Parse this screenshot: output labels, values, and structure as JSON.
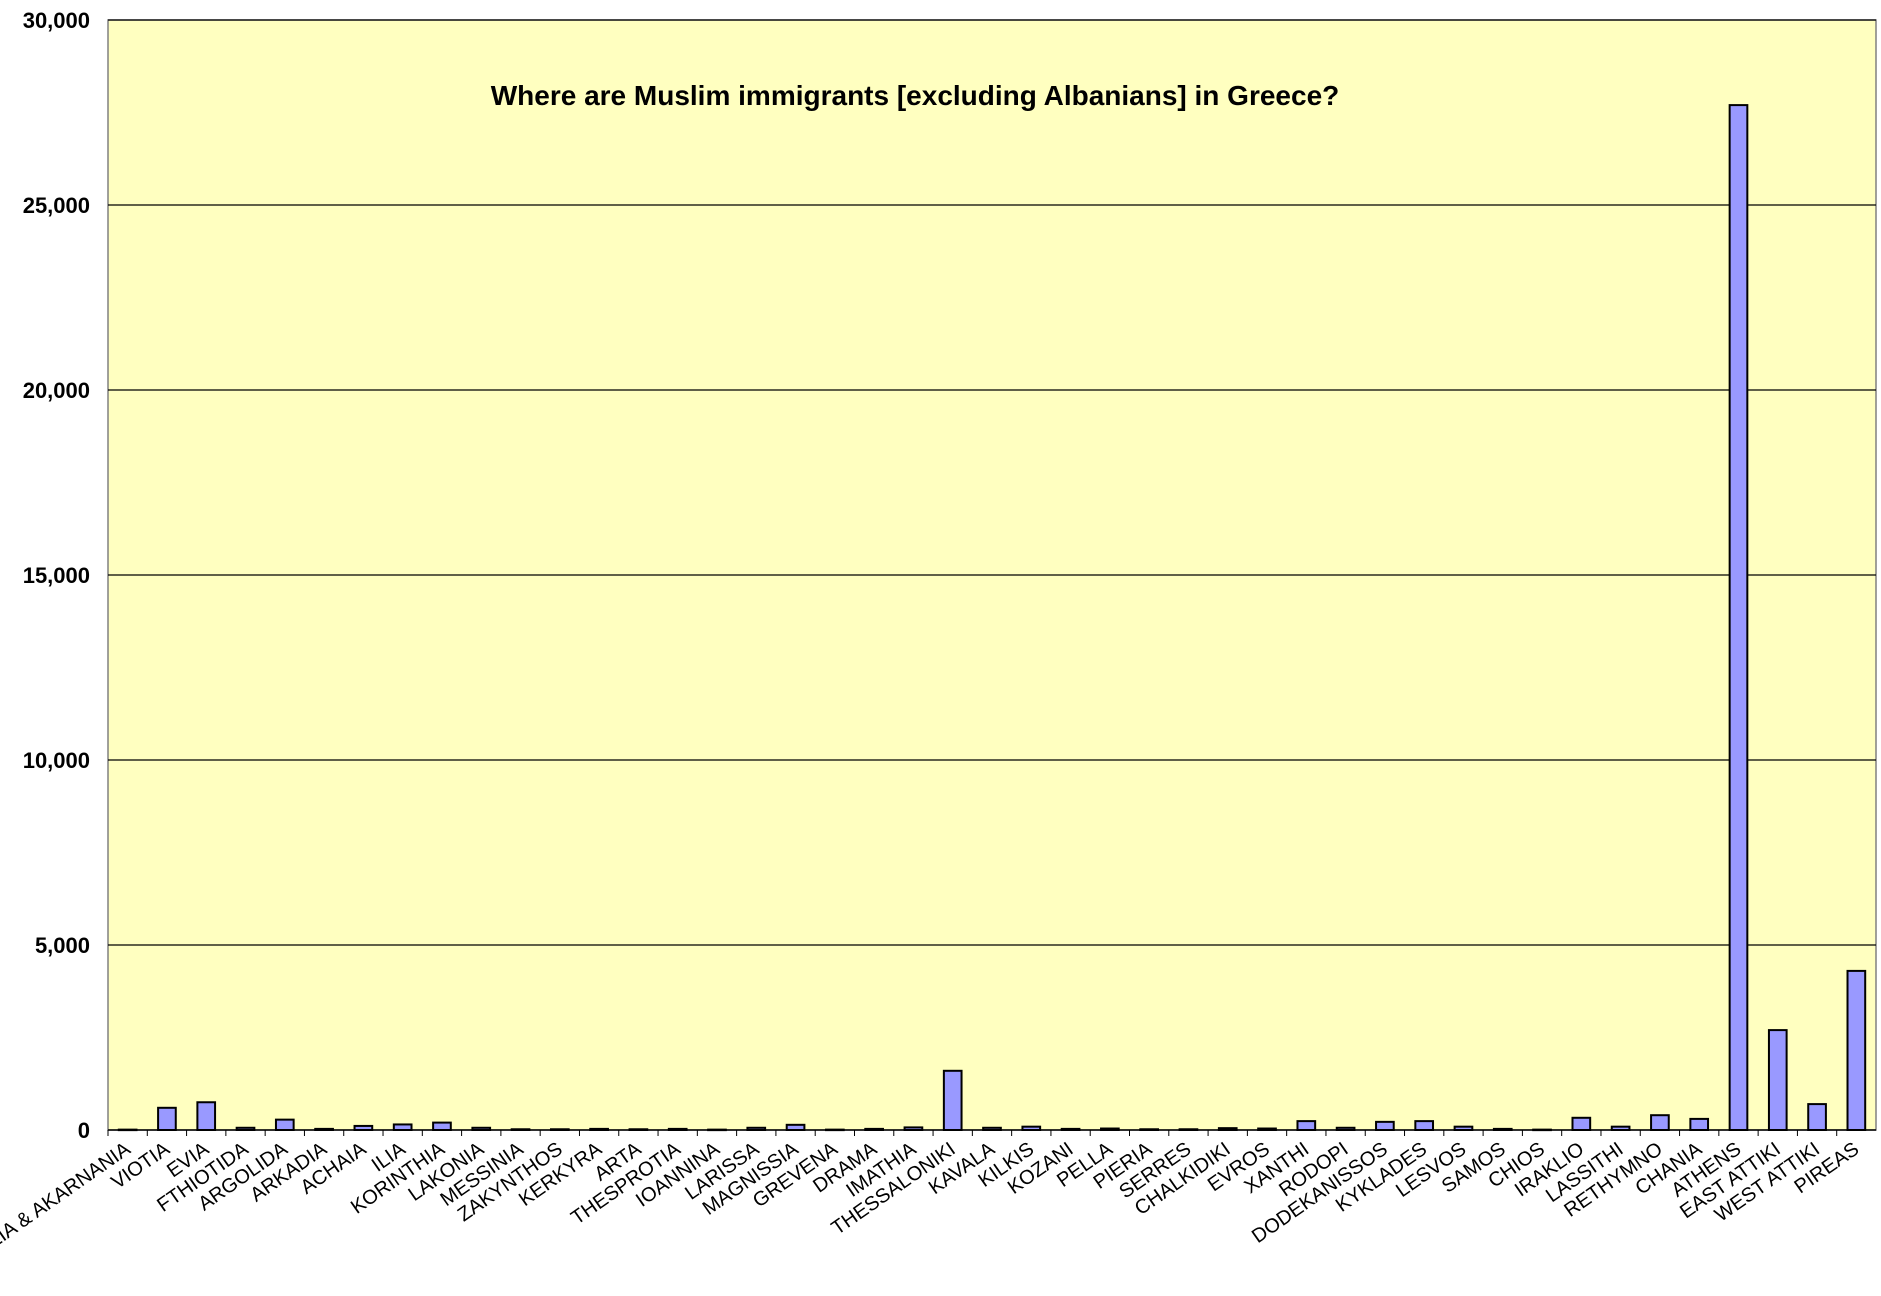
{
  "chart_data": {
    "type": "bar",
    "title": "Where are Muslim immigrants [excluding Albanians] in Greece?",
    "xlabel": "",
    "ylabel": "",
    "ylim": [
      0,
      30000
    ],
    "y_ticks": [
      0,
      5000,
      10000,
      15000,
      20000,
      25000,
      30000
    ],
    "y_tick_labels": [
      "0",
      "5,000",
      "10,000",
      "15,000",
      "20,000",
      "25,000",
      "30,000"
    ],
    "grid": true,
    "legend": "none",
    "colors": {
      "plot_background": "#ffffc0",
      "bar_fill": "#9999ff",
      "bar_stroke": "#000000",
      "gridline": "#000000"
    },
    "categories": [
      "AITOLIA & AKARNANIA",
      "VIOTIA",
      "EVIA",
      "FTHIOTIDA",
      "ARGOLIDA",
      "ARKADIA",
      "ACHAIA",
      "ILIA",
      "KORINTHIA",
      "LAKONIA",
      "MESSINIA",
      "ZAKYNTHOS",
      "KERKYRA",
      "ARTA",
      "THESPROTIA",
      "IOANNINA",
      "LARISSA",
      "MAGNISSIA",
      "GREVENA",
      "DRAMA",
      "IMATHIA",
      "THESSALONIKI",
      "KAVALA",
      "KILKIS",
      "KOZANI",
      "PELLA",
      "PIERIA",
      "SERRES",
      "CHALKIDIKI",
      "EVROS",
      "XANTHI",
      "RODOPI",
      "DODEKANISSOS",
      "KYKLADES",
      "LESVOS",
      "SAMOS",
      "CHIOS",
      "IRAKLIO",
      "LASSITHI",
      "RETHYMNO",
      "CHANIA",
      "ATHENS",
      "EAST ATTIKI",
      "WEST ATTIKI",
      "PIREAS"
    ],
    "values": [
      10,
      600,
      750,
      60,
      280,
      30,
      110,
      150,
      200,
      60,
      20,
      20,
      30,
      20,
      30,
      10,
      60,
      140,
      10,
      30,
      70,
      1600,
      60,
      90,
      30,
      40,
      20,
      20,
      50,
      40,
      240,
      60,
      220,
      240,
      90,
      30,
      10,
      330,
      90,
      400,
      300,
      27700,
      2700,
      700,
      4300
    ]
  }
}
